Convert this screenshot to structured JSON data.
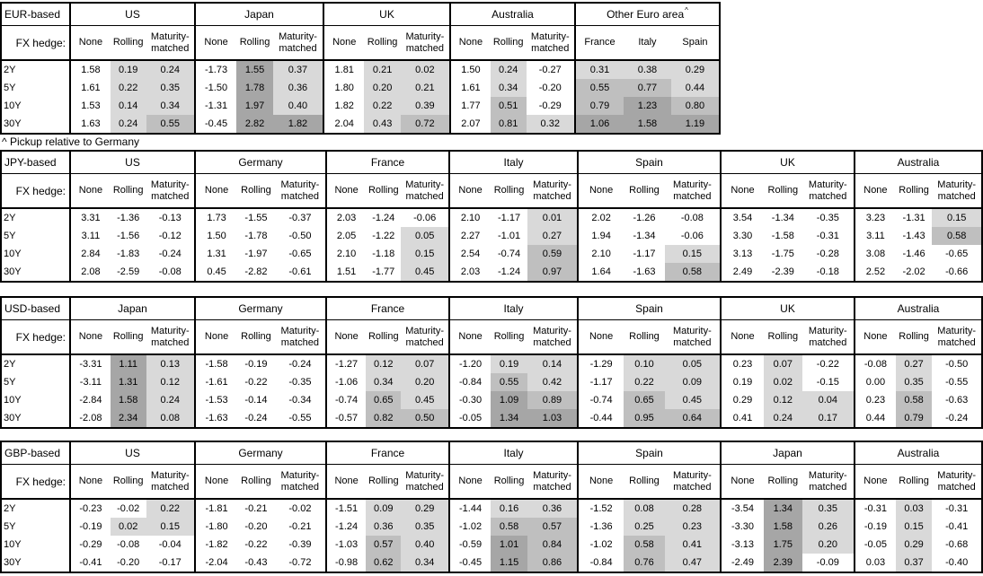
{
  "page": {
    "fx_hedge_label": "FX hedge:",
    "footnote": "^ Pickup relative to Germany"
  },
  "colors": {
    "border": "#000000",
    "text": "#000000",
    "background": "#ffffff",
    "shade_light": "#d9d9d9",
    "shade_medium": "#bfbfbf",
    "shade_dark": "#a6a6a6"
  },
  "shade_thresholds": {
    "light_min": 0.0,
    "medium_min": 0.5,
    "dark_min": 1.0
  },
  "hedge_columns": [
    "None",
    "Rolling",
    "Maturity-matched"
  ],
  "maturities": [
    "2Y",
    "5Y",
    "10Y",
    "30Y"
  ],
  "tables": [
    {
      "base": "EUR-based",
      "footnote_after": "^ Pickup relative to Germany",
      "groups": [
        {
          "name": "US",
          "columns": [
            "None",
            "Rolling",
            "Maturity-matched"
          ],
          "shaded_columns": [
            1,
            2
          ],
          "rows": [
            [
              "1.58",
              "0.19",
              "0.24"
            ],
            [
              "1.61",
              "0.22",
              "0.35"
            ],
            [
              "1.53",
              "0.14",
              "0.34"
            ],
            [
              "1.63",
              "0.24",
              "0.55"
            ]
          ]
        },
        {
          "name": "Japan",
          "columns": [
            "None",
            "Rolling",
            "Maturity-matched"
          ],
          "shaded_columns": [
            1,
            2
          ],
          "rows": [
            [
              "-1.73",
              "1.55",
              "0.37"
            ],
            [
              "-1.50",
              "1.78",
              "0.36"
            ],
            [
              "-1.31",
              "1.97",
              "0.40"
            ],
            [
              "-0.45",
              "2.82",
              "1.82"
            ]
          ]
        },
        {
          "name": "UK",
          "columns": [
            "None",
            "Rolling",
            "Maturity-matched"
          ],
          "shaded_columns": [
            1,
            2
          ],
          "rows": [
            [
              "1.81",
              "0.21",
              "0.02"
            ],
            [
              "1.80",
              "0.20",
              "0.21"
            ],
            [
              "1.82",
              "0.22",
              "0.39"
            ],
            [
              "2.04",
              "0.43",
              "0.72"
            ]
          ]
        },
        {
          "name": "Australia",
          "columns": [
            "None",
            "Rolling",
            "Maturity-matched"
          ],
          "shaded_columns": [
            1,
            2
          ],
          "rows": [
            [
              "1.50",
              "0.24",
              "-0.27"
            ],
            [
              "1.61",
              "0.34",
              "-0.20"
            ],
            [
              "1.77",
              "0.51",
              "-0.29"
            ],
            [
              "2.07",
              "0.81",
              "0.32"
            ]
          ]
        },
        {
          "name": "Other Euro area",
          "superscript": "^",
          "columns": [
            "France",
            "Italy",
            "Spain"
          ],
          "shaded_columns": [
            0,
            1,
            2
          ],
          "rows": [
            [
              "0.31",
              "0.38",
              "0.29"
            ],
            [
              "0.55",
              "0.77",
              "0.44"
            ],
            [
              "0.79",
              "1.23",
              "0.80"
            ],
            [
              "1.06",
              "1.58",
              "1.19"
            ]
          ]
        }
      ]
    },
    {
      "base": "JPY-based",
      "groups": [
        {
          "name": "US",
          "columns": [
            "None",
            "Rolling",
            "Maturity-matched"
          ],
          "shaded_columns": [
            1,
            2
          ],
          "rows": [
            [
              "3.31",
              "-1.36",
              "-0.13"
            ],
            [
              "3.11",
              "-1.56",
              "-0.12"
            ],
            [
              "2.84",
              "-1.83",
              "-0.24"
            ],
            [
              "2.08",
              "-2.59",
              "-0.08"
            ]
          ]
        },
        {
          "name": "Germany",
          "columns": [
            "None",
            "Rolling",
            "Maturity-matched"
          ],
          "shaded_columns": [
            1,
            2
          ],
          "rows": [
            [
              "1.73",
              "-1.55",
              "-0.37"
            ],
            [
              "1.50",
              "-1.78",
              "-0.50"
            ],
            [
              "1.31",
              "-1.97",
              "-0.65"
            ],
            [
              "0.45",
              "-2.82",
              "-0.61"
            ]
          ]
        },
        {
          "name": "France",
          "columns": [
            "None",
            "Rolling",
            "Maturity-matched"
          ],
          "shaded_columns": [
            1,
            2
          ],
          "rows": [
            [
              "2.03",
              "-1.24",
              "-0.06"
            ],
            [
              "2.05",
              "-1.22",
              "0.05"
            ],
            [
              "2.10",
              "-1.18",
              "0.15"
            ],
            [
              "1.51",
              "-1.77",
              "0.45"
            ]
          ]
        },
        {
          "name": "Italy",
          "columns": [
            "None",
            "Rolling",
            "Maturity-matched"
          ],
          "shaded_columns": [
            1,
            2
          ],
          "rows": [
            [
              "2.10",
              "-1.17",
              "0.01"
            ],
            [
              "2.27",
              "-1.01",
              "0.27"
            ],
            [
              "2.54",
              "-0.74",
              "0.59"
            ],
            [
              "2.03",
              "-1.24",
              "0.97"
            ]
          ]
        },
        {
          "name": "Spain",
          "columns": [
            "None",
            "Rolling",
            "Maturity-matched"
          ],
          "shaded_columns": [
            1,
            2
          ],
          "rows": [
            [
              "2.02",
              "-1.26",
              "-0.08"
            ],
            [
              "1.94",
              "-1.34",
              "-0.06"
            ],
            [
              "2.10",
              "-1.17",
              "0.15"
            ],
            [
              "1.64",
              "-1.63",
              "0.58"
            ]
          ]
        },
        {
          "name": "UK",
          "columns": [
            "None",
            "Rolling",
            "Maturity-matched"
          ],
          "shaded_columns": [
            1,
            2
          ],
          "rows": [
            [
              "3.54",
              "-1.34",
              "-0.35"
            ],
            [
              "3.30",
              "-1.58",
              "-0.31"
            ],
            [
              "3.13",
              "-1.75",
              "-0.28"
            ],
            [
              "2.49",
              "-2.39",
              "-0.18"
            ]
          ]
        },
        {
          "name": "Australia",
          "columns": [
            "None",
            "Rolling",
            "Maturity-matched"
          ],
          "shaded_columns": [
            1,
            2
          ],
          "rows": [
            [
              "3.23",
              "-1.31",
              "0.15"
            ],
            [
              "3.11",
              "-1.43",
              "0.58"
            ],
            [
              "3.08",
              "-1.46",
              "-0.65"
            ],
            [
              "2.52",
              "-2.02",
              "-0.66"
            ]
          ]
        }
      ]
    },
    {
      "base": "USD-based",
      "groups": [
        {
          "name": "Japan",
          "columns": [
            "None",
            "Rolling",
            "Maturity-matched"
          ],
          "shaded_columns": [
            1,
            2
          ],
          "rows": [
            [
              "-3.31",
              "1.11",
              "0.13"
            ],
            [
              "-3.11",
              "1.31",
              "0.12"
            ],
            [
              "-2.84",
              "1.58",
              "0.24"
            ],
            [
              "-2.08",
              "2.34",
              "0.08"
            ]
          ]
        },
        {
          "name": "Germany",
          "columns": [
            "None",
            "Rolling",
            "Maturity-matched"
          ],
          "shaded_columns": [
            1,
            2
          ],
          "rows": [
            [
              "-1.58",
              "-0.19",
              "-0.24"
            ],
            [
              "-1.61",
              "-0.22",
              "-0.35"
            ],
            [
              "-1.53",
              "-0.14",
              "-0.34"
            ],
            [
              "-1.63",
              "-0.24",
              "-0.55"
            ]
          ]
        },
        {
          "name": "France",
          "columns": [
            "None",
            "Rolling",
            "Maturity-matched"
          ],
          "shaded_columns": [
            1,
            2
          ],
          "rows": [
            [
              "-1.27",
              "0.12",
              "0.07"
            ],
            [
              "-1.06",
              "0.34",
              "0.20"
            ],
            [
              "-0.74",
              "0.65",
              "0.45"
            ],
            [
              "-0.57",
              "0.82",
              "0.50"
            ]
          ]
        },
        {
          "name": "Italy",
          "columns": [
            "None",
            "Rolling",
            "Maturity-matched"
          ],
          "shaded_columns": [
            1,
            2
          ],
          "rows": [
            [
              "-1.20",
              "0.19",
              "0.14"
            ],
            [
              "-0.84",
              "0.55",
              "0.42"
            ],
            [
              "-0.30",
              "1.09",
              "0.89"
            ],
            [
              "-0.05",
              "1.34",
              "1.03"
            ]
          ]
        },
        {
          "name": "Spain",
          "columns": [
            "None",
            "Rolling",
            "Maturity-matched"
          ],
          "shaded_columns": [
            1,
            2
          ],
          "rows": [
            [
              "-1.29",
              "0.10",
              "0.05"
            ],
            [
              "-1.17",
              "0.22",
              "0.09"
            ],
            [
              "-0.74",
              "0.65",
              "0.45"
            ],
            [
              "-0.44",
              "0.95",
              "0.64"
            ]
          ]
        },
        {
          "name": "UK",
          "columns": [
            "None",
            "Rolling",
            "Maturity-matched"
          ],
          "shaded_columns": [
            1,
            2
          ],
          "rows": [
            [
              "0.23",
              "0.07",
              "-0.22"
            ],
            [
              "0.19",
              "0.02",
              "-0.15"
            ],
            [
              "0.29",
              "0.12",
              "0.04"
            ],
            [
              "0.41",
              "0.24",
              "0.17"
            ]
          ]
        },
        {
          "name": "Australia",
          "columns": [
            "None",
            "Rolling",
            "Maturity-matched"
          ],
          "shaded_columns": [
            1,
            2
          ],
          "rows": [
            [
              "-0.08",
              "0.27",
              "-0.50"
            ],
            [
              "0.00",
              "0.35",
              "-0.55"
            ],
            [
              "0.23",
              "0.58",
              "-0.63"
            ],
            [
              "0.44",
              "0.79",
              "-0.24"
            ]
          ]
        }
      ]
    },
    {
      "base": "GBP-based",
      "groups": [
        {
          "name": "US",
          "columns": [
            "None",
            "Rolling",
            "Maturity-matched"
          ],
          "shaded_columns": [
            1,
            2
          ],
          "rows": [
            [
              "-0.23",
              "-0.02",
              "0.22"
            ],
            [
              "-0.19",
              "0.02",
              "0.15"
            ],
            [
              "-0.29",
              "-0.08",
              "-0.04"
            ],
            [
              "-0.41",
              "-0.20",
              "-0.17"
            ]
          ]
        },
        {
          "name": "Germany",
          "columns": [
            "None",
            "Rolling",
            "Maturity-matched"
          ],
          "shaded_columns": [
            1,
            2
          ],
          "rows": [
            [
              "-1.81",
              "-0.21",
              "-0.02"
            ],
            [
              "-1.80",
              "-0.20",
              "-0.21"
            ],
            [
              "-1.82",
              "-0.22",
              "-0.39"
            ],
            [
              "-2.04",
              "-0.43",
              "-0.72"
            ]
          ]
        },
        {
          "name": "France",
          "columns": [
            "None",
            "Rolling",
            "Maturity-matched"
          ],
          "shaded_columns": [
            1,
            2
          ],
          "rows": [
            [
              "-1.51",
              "0.09",
              "0.29"
            ],
            [
              "-1.24",
              "0.36",
              "0.35"
            ],
            [
              "-1.03",
              "0.57",
              "0.40"
            ],
            [
              "-0.98",
              "0.62",
              "0.34"
            ]
          ]
        },
        {
          "name": "Italy",
          "columns": [
            "None",
            "Rolling",
            "Maturity-matched"
          ],
          "shaded_columns": [
            1,
            2
          ],
          "rows": [
            [
              "-1.44",
              "0.16",
              "0.36"
            ],
            [
              "-1.02",
              "0.58",
              "0.57"
            ],
            [
              "-0.59",
              "1.01",
              "0.84"
            ],
            [
              "-0.45",
              "1.15",
              "0.86"
            ]
          ]
        },
        {
          "name": "Spain",
          "columns": [
            "None",
            "Rolling",
            "Maturity-matched"
          ],
          "shaded_columns": [
            1,
            2
          ],
          "rows": [
            [
              "-1.52",
              "0.08",
              "0.28"
            ],
            [
              "-1.36",
              "0.25",
              "0.23"
            ],
            [
              "-1.02",
              "0.58",
              "0.41"
            ],
            [
              "-0.84",
              "0.76",
              "0.47"
            ]
          ]
        },
        {
          "name": "Japan",
          "columns": [
            "None",
            "Rolling",
            "Maturity-matched"
          ],
          "shaded_columns": [
            1,
            2
          ],
          "rows": [
            [
              "-3.54",
              "1.34",
              "0.35"
            ],
            [
              "-3.30",
              "1.58",
              "0.26"
            ],
            [
              "-3.13",
              "1.75",
              "0.20"
            ],
            [
              "-2.49",
              "2.39",
              "-0.09"
            ]
          ]
        },
        {
          "name": "Australia",
          "columns": [
            "None",
            "Rolling",
            "Maturity-matched"
          ],
          "shaded_columns": [
            1,
            2
          ],
          "rows": [
            [
              "-0.31",
              "0.03",
              "-0.31"
            ],
            [
              "-0.19",
              "0.15",
              "-0.41"
            ],
            [
              "-0.05",
              "0.29",
              "-0.68"
            ],
            [
              "0.03",
              "0.37",
              "-0.40"
            ]
          ]
        }
      ]
    }
  ]
}
